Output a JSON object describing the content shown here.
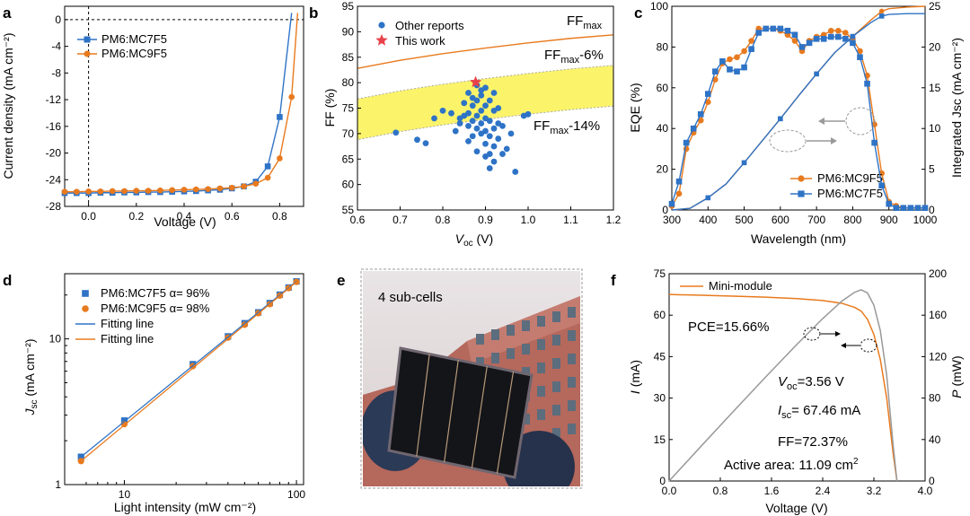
{
  "colors": {
    "blue": "#2e73c6",
    "orange": "#e87a1e",
    "yellow": "#fbf46a",
    "gray": "#999999"
  },
  "panel_labels": {
    "a": "a",
    "b": "b",
    "c": "c",
    "d": "d",
    "e": "e",
    "f": "f"
  },
  "photo": {
    "caption": "4 sub-cells",
    "subject": "photo of a dark 4 sub-cell mini-module held in a gloved hand, red-brick building background"
  },
  "chart_data": [
    {
      "id": "a",
      "type": "line",
      "xlabel": "Voltage (V)",
      "ylabel": "Current density (mA cm⁻²)",
      "xlim": [
        -0.1,
        0.9
      ],
      "ylim": [
        -28,
        2
      ],
      "xticks": [
        "0.0",
        "0.2",
        "0.4",
        "0.6",
        "0.8"
      ],
      "yticks": [
        "0",
        "-4",
        "-8",
        "-12",
        "-16",
        "-20",
        "-24",
        "-28"
      ],
      "grid": false,
      "legend": "top-left",
      "series": [
        {
          "name": "PM6:MC7F5",
          "marker": "square",
          "color": "#2e73c6",
          "x": [
            -0.1,
            -0.05,
            0,
            0.05,
            0.1,
            0.15,
            0.2,
            0.25,
            0.3,
            0.35,
            0.4,
            0.45,
            0.5,
            0.55,
            0.6,
            0.65,
            0.7,
            0.75,
            0.8,
            0.85
          ],
          "y": [
            -26.0,
            -26.0,
            -26.0,
            -25.95,
            -25.95,
            -25.9,
            -25.9,
            -25.85,
            -25.85,
            -25.8,
            -25.75,
            -25.7,
            -25.6,
            -25.5,
            -25.3,
            -25.0,
            -24.3,
            -22.0,
            -14.6,
            1.0
          ]
        },
        {
          "name": "PM6:MC9F5",
          "marker": "circle",
          "color": "#e87a1e",
          "x": [
            -0.1,
            -0.05,
            0,
            0.05,
            0.1,
            0.15,
            0.2,
            0.25,
            0.3,
            0.35,
            0.4,
            0.45,
            0.5,
            0.55,
            0.6,
            0.65,
            0.7,
            0.75,
            0.8,
            0.85,
            0.875
          ],
          "y": [
            -25.8,
            -25.8,
            -25.75,
            -25.75,
            -25.7,
            -25.7,
            -25.65,
            -25.65,
            -25.6,
            -25.55,
            -25.5,
            -25.45,
            -25.4,
            -25.3,
            -25.2,
            -25.0,
            -24.6,
            -23.7,
            -20.8,
            -11.6,
            1.0
          ]
        }
      ]
    },
    {
      "id": "b",
      "type": "scatter",
      "xlabel": "Voc (V)",
      "ylabel": "FF (%)",
      "xlim": [
        0.6,
        1.2
      ],
      "ylim": [
        55,
        95
      ],
      "xticks": [
        "0.6",
        "0.7",
        "0.8",
        "0.9",
        "1.0",
        "1.1",
        "1.2"
      ],
      "yticks": [
        "55",
        "60",
        "65",
        "70",
        "75",
        "80",
        "85",
        "90",
        "95"
      ],
      "grid": false,
      "legend": "top-left",
      "curve_labels": {
        "ffmax": "FF",
        "ffmax_sub": "max",
        "ff6": "FF",
        "ff6_sub": "max",
        "ff6_tail": "-6%",
        "ff14": "FF",
        "ff14_sub": "max",
        "ff14_tail": "-14%"
      },
      "series": [
        {
          "name": "Other reports",
          "marker": "circle",
          "color": "#2e73c6",
          "x": [
            0.69,
            0.74,
            0.76,
            0.78,
            0.8,
            0.82,
            0.83,
            0.84,
            0.85,
            0.85,
            0.86,
            0.86,
            0.86,
            0.87,
            0.87,
            0.87,
            0.87,
            0.88,
            0.88,
            0.88,
            0.88,
            0.89,
            0.89,
            0.89,
            0.89,
            0.89,
            0.9,
            0.9,
            0.9,
            0.9,
            0.9,
            0.91,
            0.91,
            0.91,
            0.91,
            0.91,
            0.92,
            0.92,
            0.92,
            0.92,
            0.93,
            0.93,
            0.93,
            0.94,
            0.94,
            0.95,
            0.96,
            0.97,
            0.99,
            1.0,
            0.86,
            0.88,
            0.9,
            0.92,
            0.84
          ],
          "y": [
            70.2,
            68.8,
            68.1,
            73.0,
            74.5,
            74.0,
            70.5,
            72.0,
            73.5,
            76.0,
            68.5,
            71.5,
            74.0,
            69.5,
            72.5,
            75.5,
            77.0,
            66.5,
            71.0,
            73.5,
            76.5,
            70.0,
            72.0,
            74.5,
            77.5,
            78.5,
            65.5,
            68.0,
            70.5,
            73.0,
            75.5,
            63.2,
            66.0,
            69.5,
            72.5,
            76.5,
            64.5,
            67.5,
            71.0,
            74.5,
            69.0,
            72.0,
            75.0,
            66.0,
            71.5,
            67.0,
            70.0,
            62.5,
            73.5,
            73.8,
            78.0,
            79.5,
            79.0,
            78.0,
            73.0
          ]
        },
        {
          "name": "This work",
          "marker": "star",
          "color": "#e8424a",
          "x": [
            0.877
          ],
          "y": [
            80.1
          ]
        }
      ],
      "ffmax_curve": {
        "x": [
          0.6,
          0.7,
          0.8,
          0.9,
          1.0,
          1.1,
          1.2
        ],
        "y": [
          82.8,
          84.4,
          85.7,
          86.8,
          87.8,
          88.7,
          89.4
        ]
      }
    },
    {
      "id": "c",
      "type": "line",
      "xlabel": "Wavelength (nm)",
      "ylabel": "EQE (%)",
      "y2label": "Integrated Jsc (mA cm⁻²)",
      "xlim": [
        300,
        1000
      ],
      "ylim": [
        0,
        100
      ],
      "y2lim": [
        0,
        25
      ],
      "xticks": [
        "300",
        "400",
        "500",
        "600",
        "700",
        "800",
        "900",
        "1000"
      ],
      "yticks": [
        "0",
        "20",
        "40",
        "60",
        "80",
        "100"
      ],
      "y2ticks": [
        "0",
        "5",
        "10",
        "15",
        "20",
        "25"
      ],
      "grid": false,
      "legend": "bottom-right",
      "series": [
        {
          "name": "PM6:MC9F5",
          "marker": "circle",
          "color": "#e87a1e",
          "x": [
            300,
            320,
            340,
            360,
            380,
            400,
            420,
            440,
            460,
            480,
            500,
            520,
            540,
            560,
            580,
            600,
            620,
            640,
            660,
            680,
            700,
            720,
            740,
            760,
            780,
            800,
            820,
            840,
            860,
            880,
            900,
            920,
            940,
            960,
            980,
            1000
          ],
          "y": [
            2,
            8,
            30,
            38,
            44,
            53,
            64,
            72,
            74,
            75,
            78,
            83,
            89,
            89,
            89,
            88,
            86,
            83,
            78,
            83,
            85,
            86,
            88,
            88,
            87,
            84,
            78,
            66,
            42,
            18,
            4,
            2,
            1,
            1,
            1,
            1
          ]
        },
        {
          "name": "PM6:MC7F5",
          "marker": "square",
          "color": "#2e73c6",
          "x": [
            300,
            320,
            340,
            360,
            380,
            400,
            420,
            440,
            460,
            480,
            500,
            520,
            540,
            560,
            580,
            600,
            620,
            640,
            660,
            680,
            700,
            720,
            740,
            760,
            780,
            800,
            820,
            840,
            860,
            880,
            900,
            920,
            940,
            960,
            980,
            1000
          ],
          "y": [
            3,
            14,
            33,
            40,
            47,
            57,
            68,
            73,
            69,
            68,
            70,
            79,
            87,
            89,
            89,
            89,
            88,
            86,
            80,
            82,
            84,
            84,
            85,
            85,
            84,
            82,
            75,
            62,
            33,
            12,
            3,
            1,
            1,
            1,
            1,
            1
          ]
        },
        {
          "name": "MC9F5 integrated",
          "color": "#e87a1e",
          "axis": "y2",
          "x": [
            300,
            350,
            400,
            450,
            500,
            550,
            600,
            650,
            700,
            750,
            800,
            850,
            880,
            900,
            950,
            1000
          ],
          "y": [
            0,
            0.2,
            1.5,
            3.2,
            5.8,
            8.5,
            11.2,
            14.0,
            16.7,
            19.3,
            21.3,
            23.3,
            24.4,
            24.7,
            24.9,
            25.0
          ]
        },
        {
          "name": "MC7F5 integrated",
          "color": "#2e73c6",
          "axis": "y2",
          "x": [
            300,
            350,
            400,
            450,
            500,
            550,
            600,
            650,
            700,
            750,
            800,
            850,
            880,
            900,
            950,
            1000
          ],
          "y": [
            0,
            0.2,
            1.5,
            3.2,
            5.8,
            8.5,
            11.2,
            14.0,
            16.7,
            19.3,
            21.3,
            23.0,
            23.8,
            24.0,
            24.1,
            24.1
          ]
        }
      ]
    },
    {
      "id": "d",
      "type": "scatter",
      "xlabel": "Light intensity (mW cm⁻²)",
      "ylabel": "Jsc (mA cm⁻²)",
      "xscale": "log",
      "yscale": "log",
      "xlim": [
        4.5,
        110
      ],
      "ylim": [
        1,
        28
      ],
      "xticks": [
        "10",
        "100"
      ],
      "yticks": [
        "1",
        "10"
      ],
      "grid": false,
      "legend": "top-left",
      "series": [
        {
          "name": "PM6:MC7F5 α= 96%",
          "marker": "square",
          "color": "#2e73c6",
          "x": [
            5.6,
            10,
            25,
            40,
            50,
            60,
            70,
            80,
            90,
            100
          ],
          "y": [
            1.55,
            2.75,
            6.7,
            10.4,
            12.8,
            15.2,
            17.6,
            20.1,
            22.5,
            24.8
          ]
        },
        {
          "name": "PM6:MC9F5 α= 98%",
          "marker": "circle",
          "color": "#e87a1e",
          "x": [
            5.6,
            10,
            25,
            40,
            50,
            60,
            70,
            80,
            90,
            100
          ],
          "y": [
            1.45,
            2.6,
            6.5,
            10.2,
            12.5,
            15.0,
            17.3,
            19.8,
            22.3,
            24.6
          ]
        },
        {
          "name": "Fitting line",
          "color": "#2e73c6",
          "line": true,
          "x": [
            5.6,
            100
          ],
          "y": [
            1.55,
            24.8
          ]
        },
        {
          "name": "Fitting line",
          "color": "#e87a1e",
          "line": true,
          "x": [
            5.6,
            100
          ],
          "y": [
            1.45,
            24.6
          ]
        }
      ]
    },
    {
      "id": "f",
      "type": "line",
      "xlabel": "Voltage (V)",
      "ylabel": "I (mA)",
      "y2label": "P (mW)",
      "xlim": [
        0,
        4
      ],
      "ylim": [
        0,
        75
      ],
      "y2lim": [
        0,
        200
      ],
      "xticks": [
        "0.0",
        "0.8",
        "1.6",
        "2.4",
        "3.2",
        "4.0"
      ],
      "yticks": [
        "0",
        "15",
        "30",
        "45",
        "60",
        "75"
      ],
      "y2ticks": [
        "0",
        "40",
        "80",
        "120",
        "160",
        "200"
      ],
      "grid": false,
      "legend": "top-left",
      "annotations": {
        "pce": "PCE=15.66%",
        "voc": "V",
        "voc_sub": "oc",
        "voc_tail": "=3.56 V",
        "isc": "I",
        "isc_sub": "sc",
        "isc_tail": "= 67.46 mA",
        "ff": "FF=72.37%",
        "area": "Active area: 11.09 cm",
        "area_sup": "2"
      },
      "series": [
        {
          "name": "Mini-module",
          "color": "#e87a1e",
          "x": [
            0,
            0.5,
            1.0,
            1.5,
            2.0,
            2.4,
            2.7,
            2.9,
            3.0,
            3.1,
            3.2,
            3.3,
            3.4,
            3.5,
            3.56
          ],
          "y": [
            67.5,
            67.2,
            66.9,
            66.5,
            66.0,
            65.3,
            64.3,
            62.8,
            61.5,
            58.5,
            53.0,
            44.0,
            30.0,
            10.0,
            0
          ]
        },
        {
          "name": "Power",
          "color": "#999999",
          "axis": "y2",
          "x": [
            0,
            0.5,
            1.0,
            1.5,
            2.0,
            2.4,
            2.7,
            2.9,
            3.0,
            3.1,
            3.2,
            3.3,
            3.4,
            3.5,
            3.56
          ],
          "y": [
            0,
            33.6,
            66.9,
            99.8,
            132,
            156.7,
            173.6,
            182.1,
            184.5,
            181.4,
            169.6,
            145.2,
            102,
            35,
            0
          ]
        }
      ]
    }
  ]
}
